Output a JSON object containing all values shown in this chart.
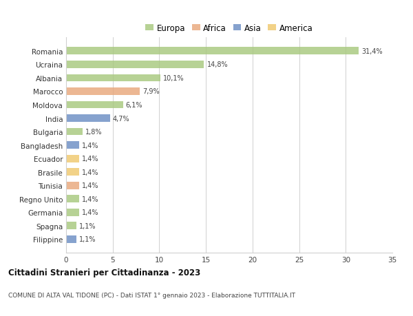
{
  "countries": [
    "Romania",
    "Ucraina",
    "Albania",
    "Marocco",
    "Moldova",
    "India",
    "Bulgaria",
    "Bangladesh",
    "Ecuador",
    "Brasile",
    "Tunisia",
    "Regno Unito",
    "Germania",
    "Spagna",
    "Filippine"
  ],
  "values": [
    31.4,
    14.8,
    10.1,
    7.9,
    6.1,
    4.7,
    1.8,
    1.4,
    1.4,
    1.4,
    1.4,
    1.4,
    1.4,
    1.1,
    1.1
  ],
  "labels": [
    "31,4%",
    "14,8%",
    "10,1%",
    "7,9%",
    "6,1%",
    "4,7%",
    "1,8%",
    "1,4%",
    "1,4%",
    "1,4%",
    "1,4%",
    "1,4%",
    "1,4%",
    "1,1%",
    "1,1%"
  ],
  "continents": [
    "Europa",
    "Europa",
    "Europa",
    "Africa",
    "Europa",
    "Asia",
    "Europa",
    "Asia",
    "America",
    "America",
    "Africa",
    "Europa",
    "Europa",
    "Europa",
    "Asia"
  ],
  "colors": {
    "Europa": "#a8c87e",
    "Africa": "#e8a87c",
    "Asia": "#6b8ec4",
    "America": "#f0c96e"
  },
  "legend_order": [
    "Europa",
    "Africa",
    "Asia",
    "America"
  ],
  "title": "Cittadini Stranieri per Cittadinanza - 2023",
  "subtitle": "COMUNE DI ALTA VAL TIDONE (PC) - Dati ISTAT 1° gennaio 2023 - Elaborazione TUTTITALIA.IT",
  "xlim": [
    0,
    35
  ],
  "xticks": [
    0,
    5,
    10,
    15,
    20,
    25,
    30,
    35
  ],
  "background_color": "#ffffff",
  "grid_color": "#d0d0d0"
}
